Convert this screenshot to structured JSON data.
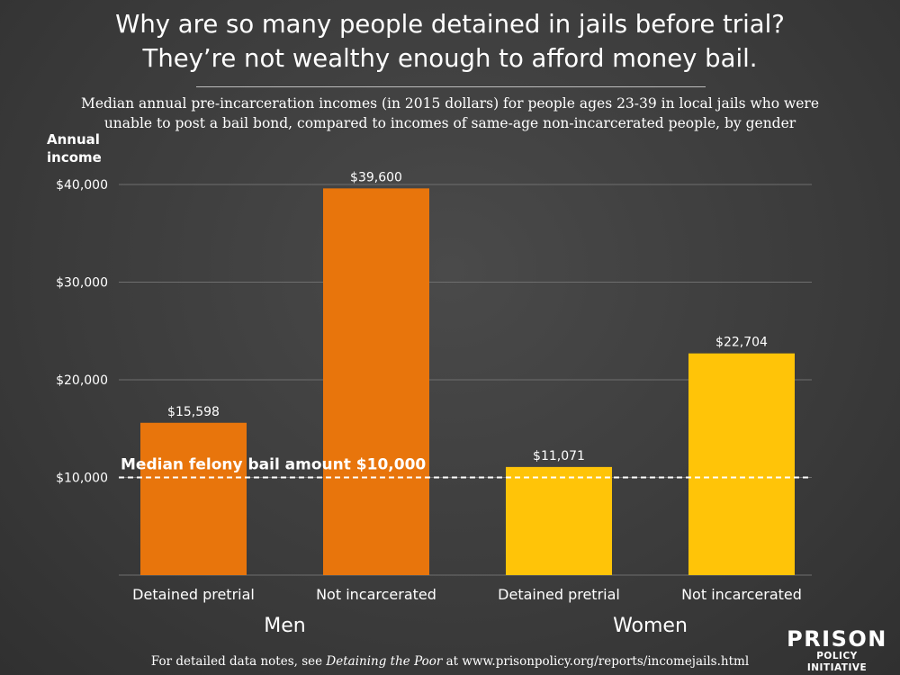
{
  "title_line1": "Why are so many people detained in jails before trial?",
  "title_line2": "They’re not wealthy enough to afford money bail.",
  "subtitle_line1": "Median annual pre-incarceration incomes (in 2015 dollars) for people ages 23-39 in local jails who were",
  "subtitle_line2": "unable to post a bail bond, compared to incomes of same-age non-incarcerated people, by gender",
  "footer": {
    "prefix": "For detailed data notes, see ",
    "report": "Detaining the Poor",
    "suffix": " at www.prisonpolicy.org/reports/incomejails.html"
  },
  "logo": {
    "line1": "PRISON",
    "line2": "POLICY INITIATIVE"
  },
  "chart_data": {
    "type": "bar",
    "title": "",
    "ylabel_line1": "Annual",
    "ylabel_line2": "income",
    "ylim": [
      0,
      40000
    ],
    "yticks": [
      10000,
      20000,
      30000,
      40000
    ],
    "ytick_labels": [
      "$10,000",
      "$20,000",
      "$30,000",
      "$40,000"
    ],
    "grid": true,
    "categories": [
      "Detained pretrial",
      "Not incarcerated",
      "Detained pretrial",
      "Not incarcerated"
    ],
    "groups": [
      "Men",
      "Women"
    ],
    "values": [
      15598,
      39600,
      11071,
      22704
    ],
    "value_labels": [
      "$15,598",
      "$39,600",
      "$11,071",
      "$22,704"
    ],
    "colors": [
      "#e8750c",
      "#e8750c",
      "#ffc408",
      "#ffc408"
    ],
    "reference_line": {
      "value": 10000,
      "label": "Median felony bail amount $10,000",
      "style": "dashed"
    }
  }
}
